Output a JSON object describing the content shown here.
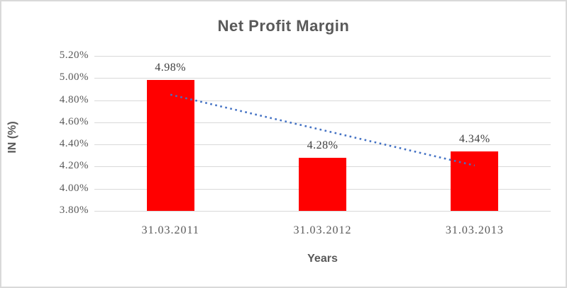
{
  "chart_data": {
    "type": "bar",
    "title": "Net Profit Margin",
    "xlabel": "Years",
    "ylabel": "IN (%)",
    "categories": [
      "31.03.2011",
      "31.03.2012",
      "31.03.2013"
    ],
    "values": [
      4.98,
      4.28,
      4.34
    ],
    "data_labels": [
      "4.98%",
      "4.28%",
      "4.34%"
    ],
    "ylim": [
      3.8,
      5.2
    ],
    "ytick_step": 0.2,
    "ytick_labels": [
      "5.20%",
      "5.00%",
      "4.80%",
      "4.60%",
      "4.40%",
      "4.20%",
      "4.00%",
      "3.80%"
    ],
    "grid": true,
    "legend": false,
    "series_color": "#ff0000",
    "trendline": {
      "style": "dotted",
      "color": "#4472c4",
      "start_value": 4.85,
      "end_value": 4.21
    },
    "colors": {
      "grid": "#d9d9d9",
      "frame_border": "#d9d9d9",
      "axis_text": "#595959",
      "title_text": "#595959",
      "data_label_text": "#404040",
      "background": "#ffffff"
    }
  }
}
